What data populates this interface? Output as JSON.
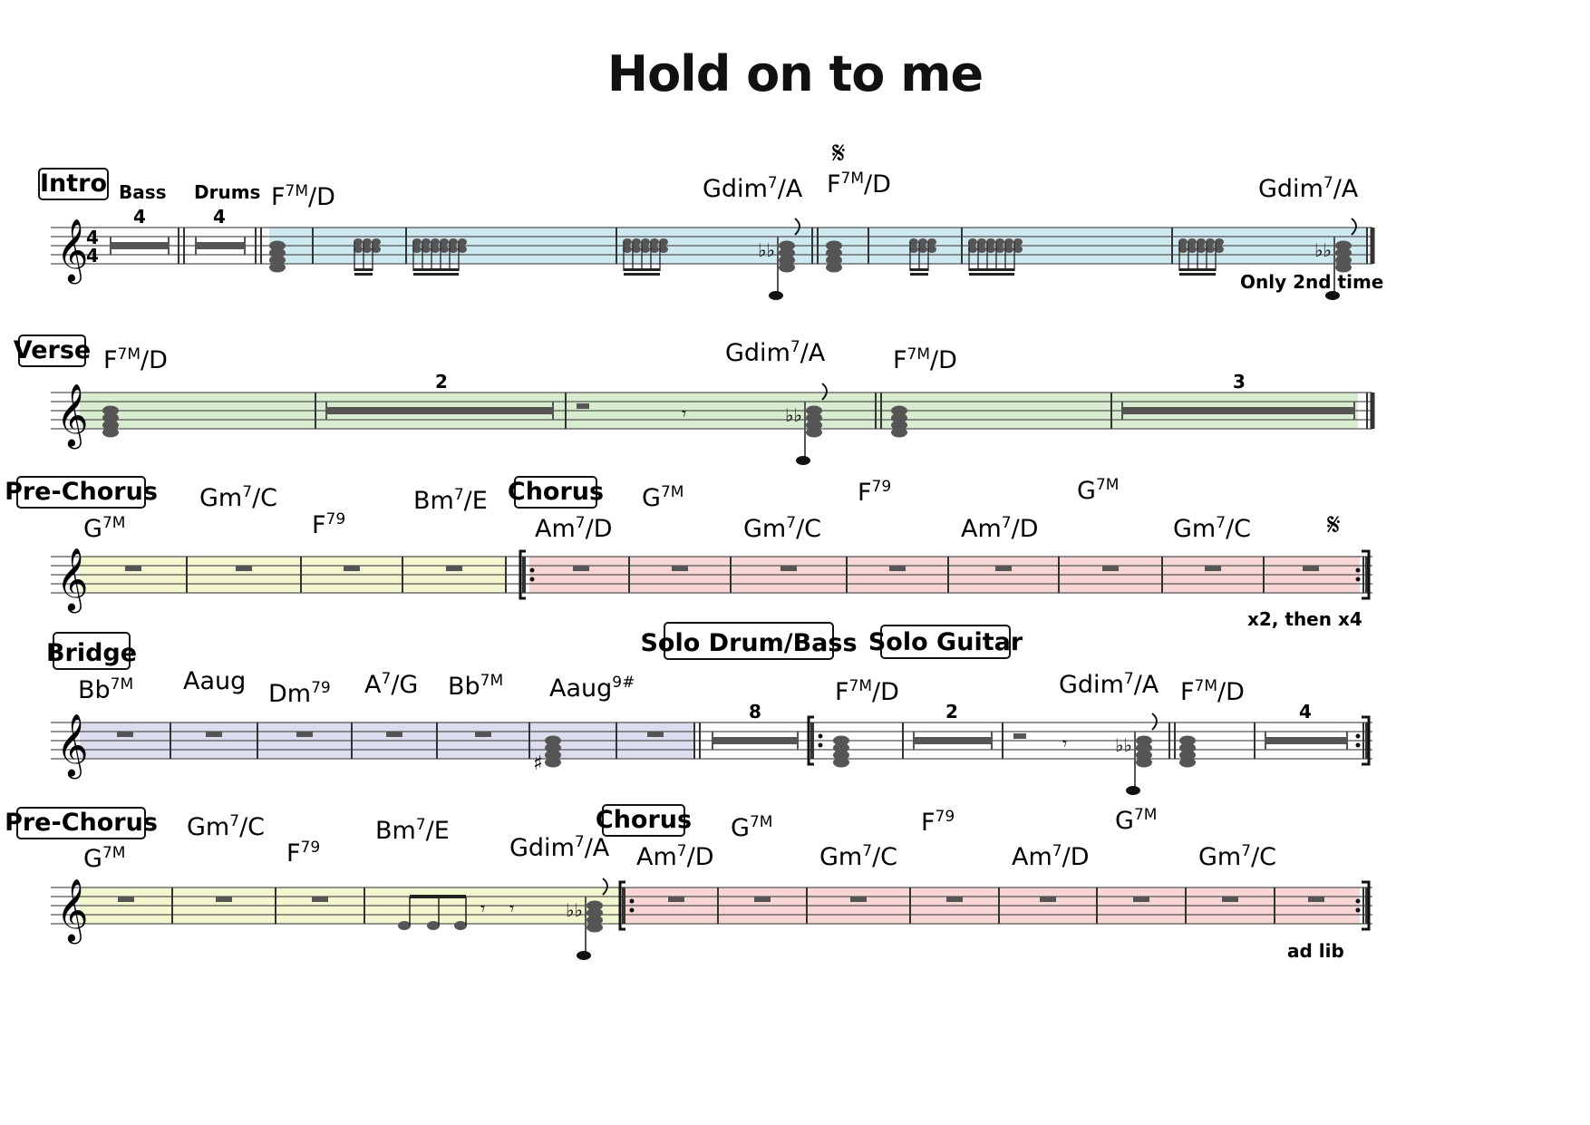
{
  "title": "Hold on to me",
  "time_signature": {
    "top": "4",
    "bottom": "4"
  },
  "colors": {
    "intro": "#cfe9f0",
    "verse": "#d8edcf",
    "pre_chorus": "#f4f6cf",
    "chorus": "#f8d6d6",
    "bridge": "#dcdcef",
    "staff_line": "#555555",
    "note": "#555555"
  },
  "rows": [
    {
      "labels": [
        {
          "id": "intro",
          "text": "Intro"
        },
        {
          "id": "bass",
          "text": "Bass"
        },
        {
          "id": "drums",
          "text": "Drums"
        },
        {
          "id": "rest-count-1",
          "text": "4"
        },
        {
          "id": "rest-count-2",
          "text": "4"
        }
      ],
      "chords": [
        {
          "root": "F",
          "sup": "7M",
          "rest": "/D"
        },
        {
          "root": "Gdim",
          "sup": "7",
          "rest": "/A"
        },
        {
          "root": "F",
          "sup": "7M",
          "rest": "/D"
        },
        {
          "root": "Gdim",
          "sup": "7",
          "rest": "/A"
        }
      ],
      "annotations": [
        "Only 2nd time"
      ],
      "segno": "𝄋"
    },
    {
      "labels": [
        {
          "id": "verse",
          "text": "Verse"
        },
        {
          "id": "rest-count-2a",
          "text": "2"
        },
        {
          "id": "rest-count-3",
          "text": "3"
        }
      ],
      "chords": [
        {
          "root": "F",
          "sup": "7M",
          "rest": "/D"
        },
        {
          "root": "Gdim",
          "sup": "7",
          "rest": "/A"
        },
        {
          "root": "F",
          "sup": "7M",
          "rest": "/D"
        }
      ]
    },
    {
      "labels": [
        {
          "id": "pre-chorus",
          "text": "Pre-Chorus"
        },
        {
          "id": "chorus",
          "text": "Chorus"
        }
      ],
      "chords": [
        {
          "root": "G",
          "sup": "7M",
          "rest": ""
        },
        {
          "root": "Gm",
          "sup": "7",
          "rest": "/C"
        },
        {
          "root": "F",
          "sup": "79",
          "rest": ""
        },
        {
          "root": "Bm",
          "sup": "7",
          "rest": "/E"
        },
        {
          "root": "Am",
          "sup": "7",
          "rest": "/D"
        },
        {
          "root": "G",
          "sup": "7M",
          "rest": ""
        },
        {
          "root": "Gm",
          "sup": "7",
          "rest": "/C"
        },
        {
          "root": "F",
          "sup": "79",
          "rest": ""
        },
        {
          "root": "Am",
          "sup": "7",
          "rest": "/D"
        },
        {
          "root": "G",
          "sup": "7M",
          "rest": ""
        },
        {
          "root": "Gm",
          "sup": "7",
          "rest": "/C"
        }
      ],
      "annotations": [
        "x2, then x4"
      ],
      "segno": "𝄋"
    },
    {
      "labels": [
        {
          "id": "bridge",
          "text": "Bridge"
        },
        {
          "id": "solo-drum-bass",
          "text": "Solo Drum/Bass"
        },
        {
          "id": "solo-guitar",
          "text": "Solo Guitar"
        },
        {
          "id": "rest-count-8",
          "text": "8"
        },
        {
          "id": "rest-count-2b",
          "text": "2"
        },
        {
          "id": "rest-count-4",
          "text": "4"
        }
      ],
      "chords": [
        {
          "root": "Bb",
          "sup": "7M",
          "rest": ""
        },
        {
          "root": "Aaug",
          "sup": "",
          "rest": ""
        },
        {
          "root": "Dm",
          "sup": "79",
          "rest": ""
        },
        {
          "root": "A",
          "sup": "7",
          "rest": "/G"
        },
        {
          "root": "Bb",
          "sup": "7M",
          "rest": ""
        },
        {
          "root": "Aaug",
          "sup": "9#",
          "rest": ""
        },
        {
          "root": "F",
          "sup": "7M",
          "rest": "/D"
        },
        {
          "root": "Gdim",
          "sup": "7",
          "rest": "/A"
        },
        {
          "root": "F",
          "sup": "7M",
          "rest": "/D"
        }
      ]
    },
    {
      "labels": [
        {
          "id": "pre-chorus",
          "text": "Pre-Chorus"
        },
        {
          "id": "chorus",
          "text": "Chorus"
        }
      ],
      "chords": [
        {
          "root": "G",
          "sup": "7M",
          "rest": ""
        },
        {
          "root": "Gm",
          "sup": "7",
          "rest": "/C"
        },
        {
          "root": "F",
          "sup": "79",
          "rest": ""
        },
        {
          "root": "Bm",
          "sup": "7",
          "rest": "/E"
        },
        {
          "root": "Gdim",
          "sup": "7",
          "rest": "/A"
        },
        {
          "root": "Am",
          "sup": "7",
          "rest": "/D"
        },
        {
          "root": "G",
          "sup": "7M",
          "rest": ""
        },
        {
          "root": "Gm",
          "sup": "7",
          "rest": "/C"
        },
        {
          "root": "F",
          "sup": "79",
          "rest": ""
        },
        {
          "root": "Am",
          "sup": "7",
          "rest": "/D"
        },
        {
          "root": "G",
          "sup": "7M",
          "rest": ""
        },
        {
          "root": "Gm",
          "sup": "7",
          "rest": "/C"
        }
      ],
      "annotations": [
        "ad lib"
      ]
    }
  ]
}
